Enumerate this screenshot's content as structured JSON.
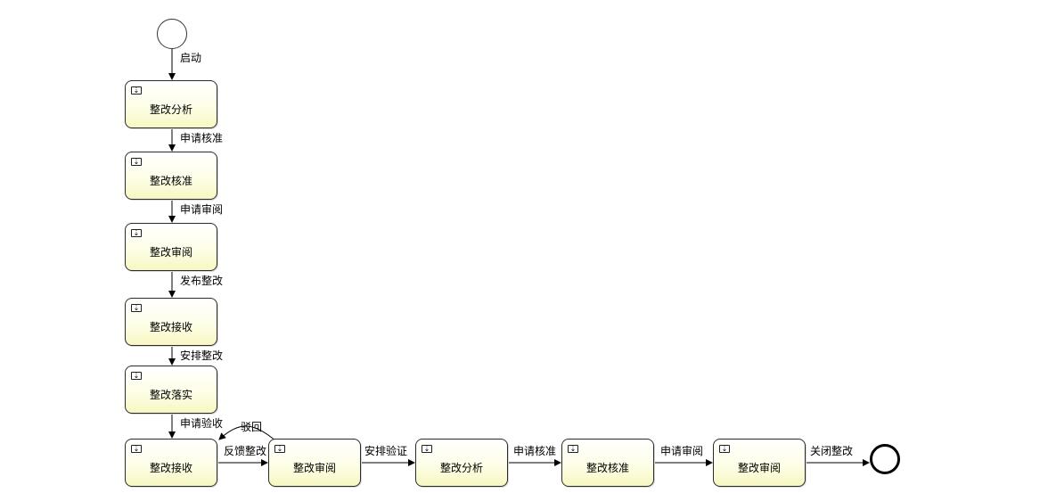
{
  "diagram": {
    "start_event_label": "启动",
    "tasks": [
      {
        "id": "t1",
        "label": "整改分析"
      },
      {
        "id": "t2",
        "label": "整改核准"
      },
      {
        "id": "t3",
        "label": "整改审阅"
      },
      {
        "id": "t4",
        "label": "整改接收"
      },
      {
        "id": "t5",
        "label": "整改落实"
      },
      {
        "id": "t6",
        "label": "整改接收"
      },
      {
        "id": "t7",
        "label": "整改审阅"
      },
      {
        "id": "t8",
        "label": "整改分析"
      },
      {
        "id": "t9",
        "label": "整改核准"
      },
      {
        "id": "t10",
        "label": "整改审阅"
      }
    ],
    "flows": [
      {
        "from": "start",
        "to": "t1",
        "label": "启动"
      },
      {
        "from": "t1",
        "to": "t2",
        "label": "申请核准"
      },
      {
        "from": "t2",
        "to": "t3",
        "label": "申请审阅"
      },
      {
        "from": "t3",
        "to": "t4",
        "label": "发布整改"
      },
      {
        "from": "t4",
        "to": "t5",
        "label": "安排整改"
      },
      {
        "from": "t5",
        "to": "t6",
        "label": "申请验收"
      },
      {
        "from": "t6",
        "to": "t7",
        "label": "反馈整改"
      },
      {
        "from": "t7",
        "to": "t6",
        "label": "驳回"
      },
      {
        "from": "t7",
        "to": "t8",
        "label": "安排验证"
      },
      {
        "from": "t8",
        "to": "t9",
        "label": "申请核准"
      },
      {
        "from": "t9",
        "to": "t10",
        "label": "申请审阅"
      },
      {
        "from": "t10",
        "to": "end",
        "label": "关闭整改"
      }
    ]
  }
}
